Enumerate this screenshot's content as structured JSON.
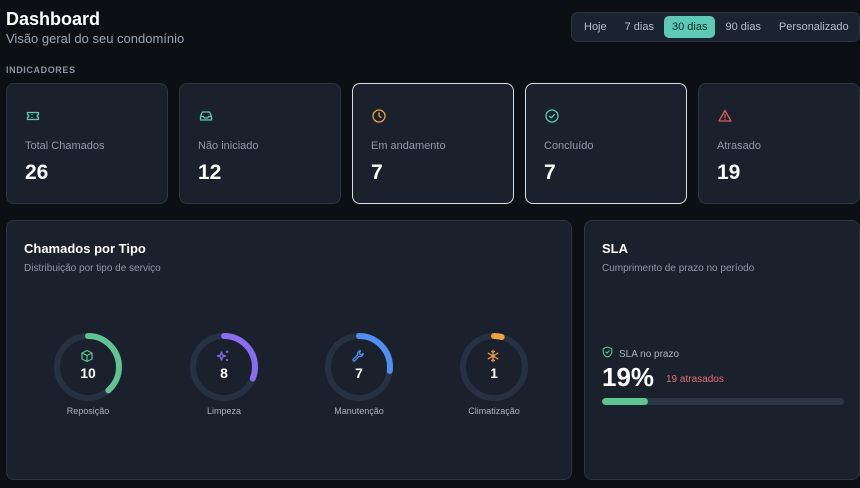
{
  "header": {
    "title": "Dashboard",
    "subtitle": "Visão geral do seu condomínio"
  },
  "ranges": {
    "options": [
      "Hoje",
      "7 dias",
      "30 dias",
      "90 dias",
      "Personalizado"
    ],
    "selected": "30 dias"
  },
  "section_label": "INDICADORES",
  "kpis": [
    {
      "label": "Total Chamados",
      "value": "26",
      "icon": "ticket-icon",
      "color": "#5ec9b4"
    },
    {
      "label": "Não iniciado",
      "value": "12",
      "icon": "inbox-icon",
      "color": "#5ec9b4"
    },
    {
      "label": "Em andamento",
      "value": "7",
      "icon": "clock-icon",
      "color": "#f0a040"
    },
    {
      "label": "Concluído",
      "value": "7",
      "icon": "check-circle-icon",
      "color": "#5ec9b4"
    },
    {
      "label": "Atrasado",
      "value": "19",
      "icon": "alert-triangle-icon",
      "color": "#e05a5a"
    }
  ],
  "types_panel": {
    "title": "Chamados por Tipo",
    "subtitle": "Distribuição por tipo de serviço",
    "items": [
      {
        "label": "Reposição",
        "value": "10",
        "share": 0.385,
        "color": "#5fc48f",
        "icon": "box-icon"
      },
      {
        "label": "Limpeza",
        "value": "8",
        "share": 0.31,
        "color": "#8a6cf0",
        "icon": "sparkles-icon"
      },
      {
        "label": "Manutenção",
        "value": "7",
        "share": 0.27,
        "color": "#4f8ff0",
        "icon": "wrench-icon"
      },
      {
        "label": "Climatização",
        "value": "1",
        "share": 0.04,
        "color": "#f0a040",
        "icon": "snowflake-icon"
      }
    ]
  },
  "sla_panel": {
    "title": "SLA",
    "subtitle": "Cumprimento de prazo no período",
    "status_label": "SLA no prazo",
    "percent": "19%",
    "late_text": "19 atrasados",
    "progress": 0.19
  }
}
